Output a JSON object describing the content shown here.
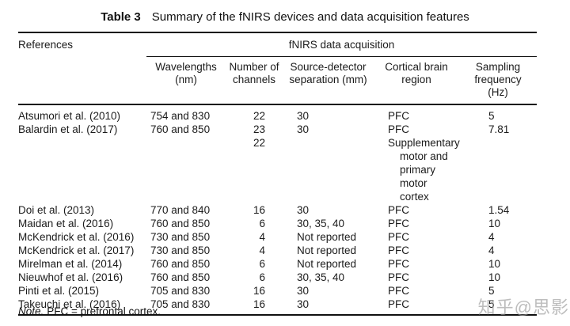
{
  "caption": {
    "label": "Table 3",
    "text": "Summary of the fNIRS devices and data acquisition features"
  },
  "table": {
    "ref_header": "References",
    "group_header": "fNIRS data acquisition",
    "columns": [
      "Wavelengths\n(nm)",
      "Number of\nchannels",
      "Source-detector\nseparation (mm)",
      "Cortical brain\nregion",
      "Sampling\nfrequency\n(Hz)"
    ],
    "rows": [
      {
        "ref": "Atsumori et al. (2010)",
        "wavelengths": "754 and 830",
        "channels": "22",
        "separation": "30",
        "region": "PFC",
        "frequency": "5"
      },
      {
        "ref": "Balardin et al. (2017)",
        "wavelengths": "760 and 850",
        "channels": "23\n22",
        "separation": "30",
        "region": "PFC",
        "region2": "Supplementary\nmotor and\nprimary motor\ncortex",
        "frequency": "7.81"
      },
      {
        "ref": "Doi et al. (2013)",
        "wavelengths": "770 and 840",
        "channels": "16",
        "separation": "30",
        "region": "PFC",
        "frequency": "1.54"
      },
      {
        "ref": "Maidan et al. (2016)",
        "wavelengths": "760 and 850",
        "channels": "6",
        "separation": "30, 35, 40",
        "region": "PFC",
        "frequency": "10"
      },
      {
        "ref": "McKendrick et al. (2016)",
        "wavelengths": "730 and 850",
        "channels": "4",
        "separation": "Not reported",
        "region": "PFC",
        "frequency": "4"
      },
      {
        "ref": "McKendrick et al. (2017)",
        "wavelengths": "730 and 850",
        "channels": "4",
        "separation": "Not reported",
        "region": "PFC",
        "frequency": "4"
      },
      {
        "ref": "Mirelman et al. (2014)",
        "wavelengths": "760 and 850",
        "channels": "6",
        "separation": "Not reported",
        "region": "PFC",
        "frequency": "10"
      },
      {
        "ref": "Nieuwhof et al. (2016)",
        "wavelengths": "760 and 850",
        "channels": "6",
        "separation": "30, 35, 40",
        "region": "PFC",
        "frequency": "10"
      },
      {
        "ref": "Pinti et al. (2015)",
        "wavelengths": "705 and 830",
        "channels": "16",
        "separation": "30",
        "region": "PFC",
        "frequency": "5"
      },
      {
        "ref": "Takeuchi et al. (2016)",
        "wavelengths": "705 and 830",
        "channels": "16",
        "separation": "30",
        "region": "PFC",
        "frequency": "5"
      }
    ],
    "note": {
      "label": "Note.",
      "text": "PFC = prefrontal cortex."
    }
  },
  "watermark": "知乎@思影",
  "colors": {
    "text": "#1b1b1b",
    "rule": "#111111",
    "watermark": "#9a9a9a",
    "background": "#ffffff"
  }
}
